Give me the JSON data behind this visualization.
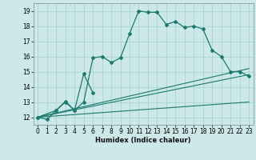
{
  "xlabel": "Humidex (Indice chaleur)",
  "background_color": "#cce8e8",
  "grid_color": "#aad4d4",
  "line_color": "#1a7a6e",
  "xlim": [
    -0.5,
    23.5
  ],
  "ylim": [
    11.5,
    19.5
  ],
  "yticks": [
    12,
    13,
    14,
    15,
    16,
    17,
    18,
    19
  ],
  "xticks": [
    0,
    1,
    2,
    3,
    4,
    5,
    6,
    7,
    8,
    9,
    10,
    11,
    12,
    13,
    14,
    15,
    16,
    17,
    18,
    19,
    20,
    21,
    22,
    23
  ],
  "curve1_x": [
    0,
    1,
    2,
    3,
    4,
    5,
    6,
    7,
    8,
    9,
    10,
    11,
    12,
    13,
    14,
    15,
    16,
    17,
    18,
    19,
    20,
    21,
    22,
    23
  ],
  "curve1_y": [
    12.0,
    11.85,
    12.45,
    13.0,
    12.45,
    13.0,
    15.9,
    16.0,
    15.6,
    15.9,
    17.5,
    19.0,
    18.9,
    18.9,
    18.1,
    18.3,
    17.9,
    18.0,
    17.8,
    16.4,
    16.0,
    15.0,
    15.0,
    14.7
  ],
  "curve2_x": [
    0,
    2,
    3,
    4,
    5,
    6
  ],
  "curve2_y": [
    12.0,
    12.45,
    13.05,
    12.45,
    14.85,
    13.6
  ],
  "line1_x": [
    0,
    23
  ],
  "line1_y": [
    12.0,
    15.2
  ],
  "line2_x": [
    0,
    23
  ],
  "line2_y": [
    12.0,
    14.8
  ],
  "line3_x": [
    0,
    23
  ],
  "line3_y": [
    12.0,
    13.0
  ]
}
